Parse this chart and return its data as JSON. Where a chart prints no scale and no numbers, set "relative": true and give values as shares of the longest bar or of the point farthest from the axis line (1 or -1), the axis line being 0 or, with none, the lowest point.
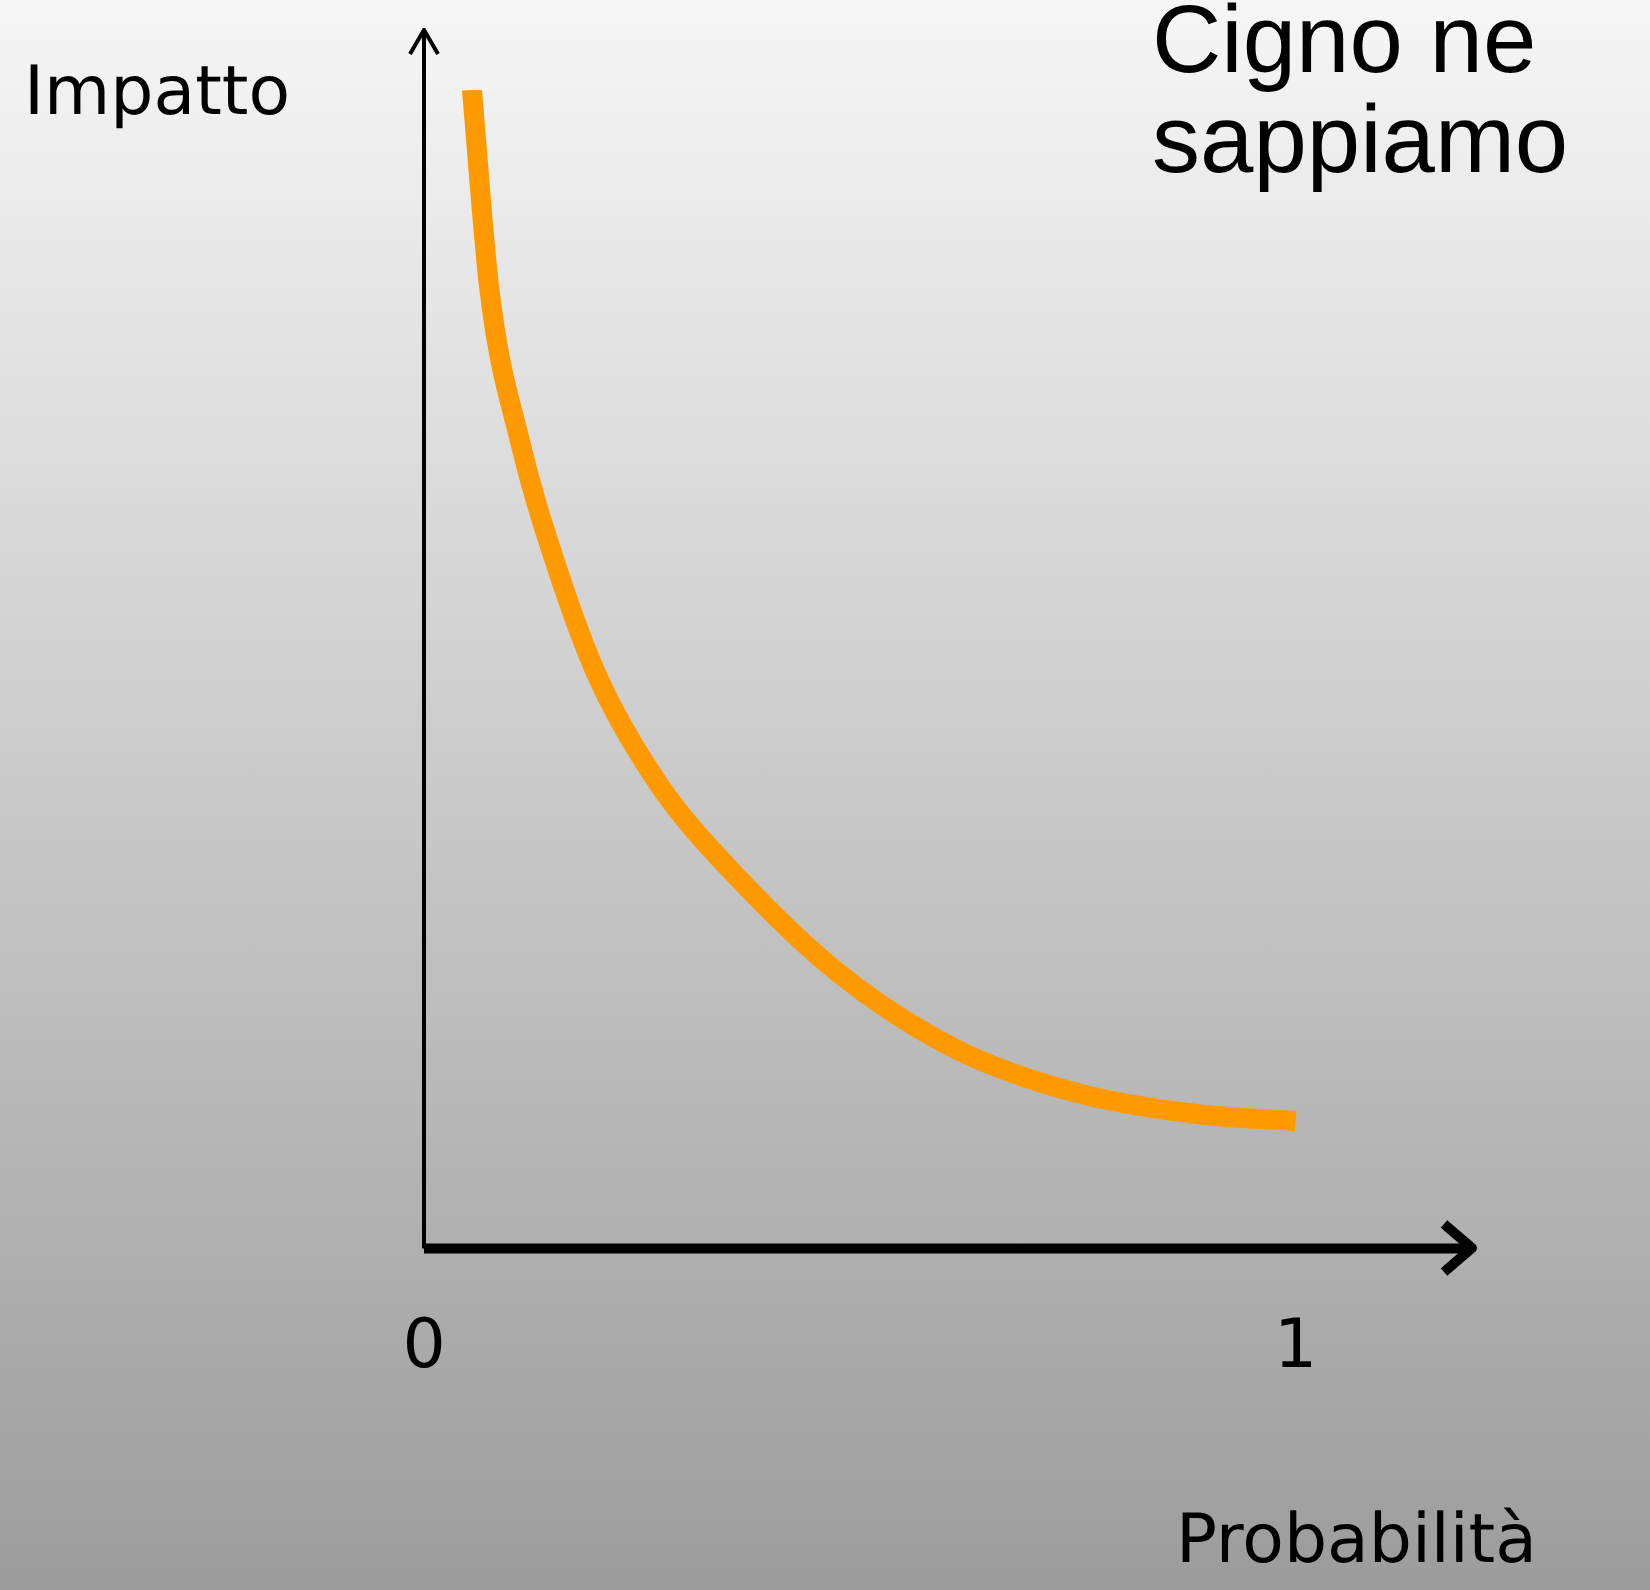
{
  "chart_data": {
    "type": "line",
    "title": "Cigno ne",
    "subtitle": "sappiamo",
    "xlabel": "Probabilità",
    "ylabel": "Impatto",
    "relative": true,
    "xlim": [
      0,
      1.2
    ],
    "xticks": [
      0,
      1
    ],
    "grid": false,
    "legend": false,
    "marker": "none",
    "line_style": "solid",
    "x": [
      0.055,
      0.075,
      0.11,
      0.155,
      0.2,
      0.27,
      0.36,
      0.475,
      0.61,
      0.75,
      0.886,
      1.0
    ],
    "series": [
      {
        "color": "#ff9900",
        "values": [
          1.0,
          0.828,
          0.697,
          0.582,
          0.492,
          0.4,
          0.32,
          0.238,
          0.172,
          0.134,
          0.116,
          0.11
        ]
      }
    ]
  }
}
